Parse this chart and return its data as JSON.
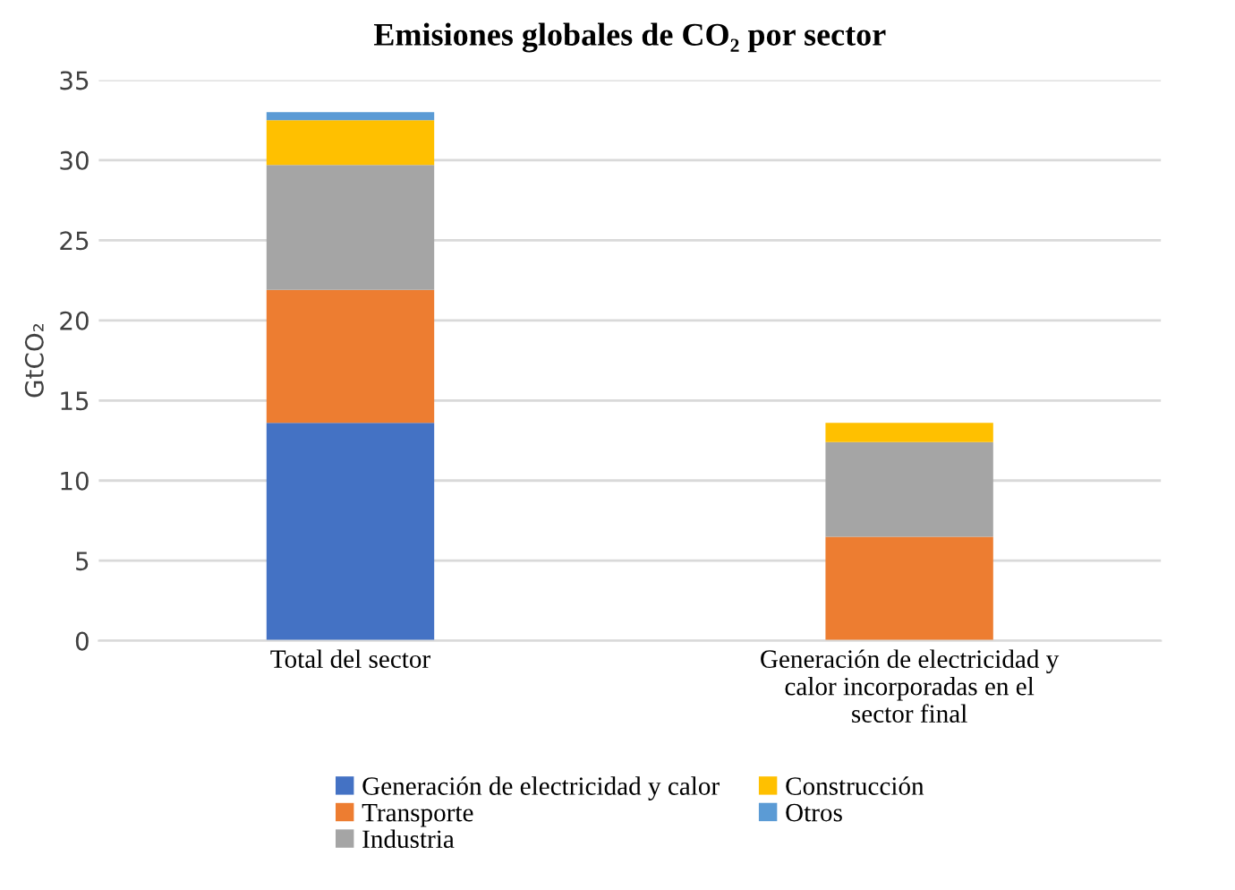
{
  "chart_data": {
    "type": "bar",
    "title": "Emisiones globales de CO₂ por sector",
    "ylabel": "GtCO₂",
    "categories": [
      "Total del sector",
      "Generación de electricidad y\ncalor incorporadas en el\nsector final"
    ],
    "stacked": true,
    "ylim": [
      0,
      35
    ],
    "yticks": [
      0,
      5,
      10,
      15,
      20,
      25,
      30,
      35
    ],
    "grid": "y",
    "legend": "bottom",
    "series": [
      {
        "name": "Generación de electricidad y calor",
        "color": "#4472c4",
        "values": [
          13.6,
          0
        ]
      },
      {
        "name": "Transporte",
        "color": "#ed7d31",
        "values": [
          8.3,
          6.5
        ]
      },
      {
        "name": "Industria",
        "color": "#a5a5a5",
        "values": [
          7.8,
          5.9
        ]
      },
      {
        "name": "Construcción",
        "color": "#ffc000",
        "values": [
          2.8,
          1.2
        ]
      },
      {
        "name": "Otros",
        "color": "#5b9bd5",
        "values": [
          0.5,
          0
        ]
      }
    ]
  }
}
